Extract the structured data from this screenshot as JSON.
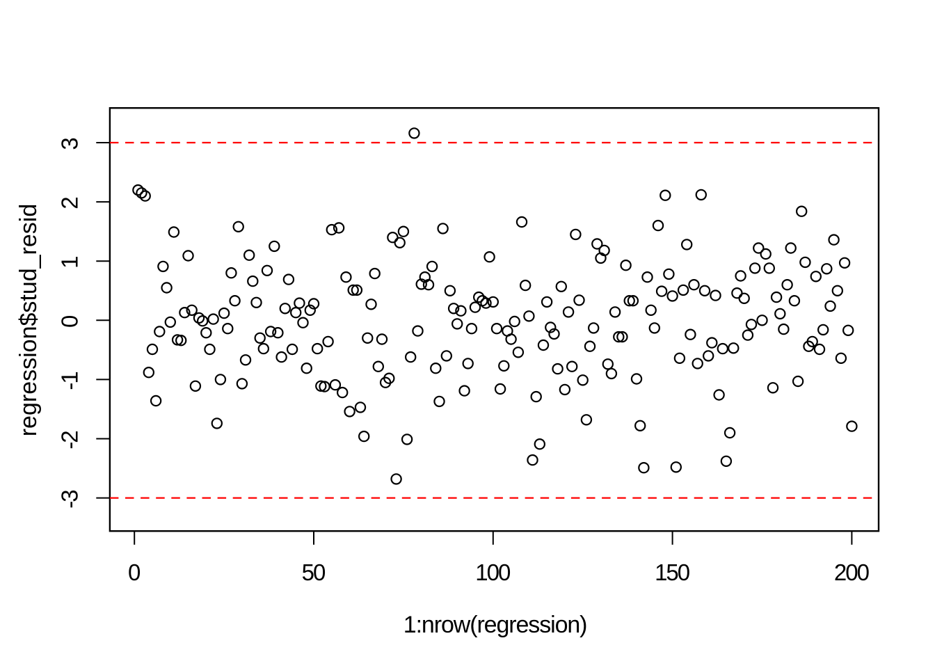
{
  "figure": {
    "background_color": "#ffffff",
    "foreground_color": "#000000",
    "reference_line_color": "#ff0000"
  },
  "chart_data": {
    "type": "scatter",
    "title": "",
    "xlabel": "1:nrow(regression)",
    "ylabel": "regression$stud_resid",
    "x_ticks": [
      0,
      50,
      100,
      150,
      200
    ],
    "x_tick_labels": [
      "0",
      "50",
      "100",
      "150",
      "200"
    ],
    "y_ticks": [
      -3,
      -2,
      -1,
      0,
      1,
      2,
      3
    ],
    "y_tick_labels": [
      "-3",
      "-2",
      "-1",
      "0",
      "1",
      "2",
      "3"
    ],
    "xlim": [
      -7.0,
      208.0
    ],
    "ylim": [
      -3.57,
      3.59
    ],
    "grid": false,
    "legend": false,
    "marker": {
      "shape": "open-circle",
      "color": "#000000"
    },
    "reference_lines": [
      {
        "y": 3,
        "color": "#ff0000",
        "style": "dashed"
      },
      {
        "y": -3,
        "color": "#ff0000",
        "style": "dashed"
      }
    ],
    "x": [
      1,
      2,
      3,
      4,
      5,
      6,
      7,
      8,
      9,
      10,
      11,
      12,
      13,
      14,
      15,
      16,
      17,
      18,
      19,
      20,
      21,
      22,
      23,
      24,
      25,
      26,
      27,
      28,
      29,
      30,
      31,
      32,
      33,
      34,
      35,
      36,
      37,
      38,
      39,
      40,
      41,
      42,
      43,
      44,
      45,
      46,
      47,
      48,
      49,
      50,
      51,
      52,
      53,
      54,
      55,
      56,
      57,
      58,
      59,
      60,
      61,
      62,
      63,
      64,
      65,
      66,
      67,
      68,
      69,
      70,
      71,
      72,
      73,
      74,
      75,
      76,
      77,
      78,
      79,
      80,
      81,
      82,
      83,
      84,
      85,
      86,
      87,
      88,
      89,
      90,
      91,
      92,
      93,
      94,
      95,
      96,
      97,
      98,
      99,
      100,
      101,
      102,
      103,
      104,
      105,
      106,
      107,
      108,
      109,
      110,
      111,
      112,
      113,
      114,
      115,
      116,
      117,
      118,
      119,
      120,
      121,
      122,
      123,
      124,
      125,
      126,
      127,
      128,
      129,
      130,
      131,
      132,
      133,
      134,
      135,
      136,
      137,
      138,
      139,
      140,
      141,
      142,
      143,
      144,
      145,
      146,
      147,
      148,
      149,
      150,
      151,
      152,
      153,
      154,
      155,
      156,
      157,
      158,
      159,
      160,
      161,
      162,
      163,
      164,
      165,
      166,
      167,
      168,
      169,
      170,
      171,
      172,
      173,
      174,
      175,
      176,
      177,
      178,
      179,
      180,
      181,
      182,
      183,
      184,
      185,
      186,
      187,
      188,
      189,
      190,
      191,
      192,
      193,
      194,
      195,
      196,
      197,
      198,
      199,
      200
    ],
    "y": [
      2.2,
      2.15,
      2.1,
      -0.88,
      -0.49,
      -1.36,
      -0.19,
      0.91,
      0.55,
      -0.03,
      1.49,
      -0.33,
      -0.34,
      0.13,
      1.09,
      0.17,
      -1.11,
      0.04,
      -0.01,
      -0.21,
      -0.49,
      0.02,
      -1.74,
      -1.0,
      0.12,
      -0.14,
      0.8,
      0.33,
      1.58,
      -1.07,
      -0.67,
      1.1,
      0.66,
      0.3,
      -0.3,
      -0.48,
      0.84,
      -0.19,
      1.25,
      -0.21,
      -0.62,
      0.2,
      0.69,
      -0.49,
      0.13,
      0.29,
      -0.04,
      -0.81,
      0.17,
      0.28,
      -0.48,
      -1.11,
      -1.12,
      -0.36,
      1.53,
      -1.09,
      1.56,
      -1.22,
      0.73,
      -1.54,
      0.51,
      0.51,
      -1.47,
      -1.96,
      -0.3,
      0.27,
      0.79,
      -0.78,
      -0.32,
      -1.05,
      -0.98,
      1.4,
      -2.68,
      1.31,
      1.5,
      -2.01,
      -0.62,
      3.16,
      -0.18,
      0.61,
      0.73,
      0.6,
      0.91,
      -0.81,
      -1.37,
      1.55,
      -0.6,
      0.5,
      0.2,
      -0.06,
      0.16,
      -1.19,
      -0.73,
      -0.14,
      0.22,
      0.39,
      0.33,
      0.29,
      1.07,
      0.31,
      -0.14,
      -1.16,
      -0.77,
      -0.18,
      -0.32,
      -0.02,
      -0.54,
      1.66,
      0.59,
      0.07,
      -2.36,
      -1.29,
      -2.09,
      -0.42,
      0.31,
      -0.12,
      -0.23,
      -0.82,
      0.57,
      -1.17,
      0.14,
      -0.78,
      1.45,
      0.34,
      -1.01,
      -1.68,
      -0.44,
      -0.13,
      1.29,
      1.05,
      1.18,
      -0.74,
      -0.9,
      0.14,
      -0.28,
      -0.28,
      0.93,
      0.33,
      0.33,
      -0.99,
      -1.78,
      -2.49,
      0.73,
      0.17,
      -0.13,
      1.6,
      0.49,
      2.11,
      0.78,
      0.41,
      -2.48,
      -0.64,
      0.51,
      1.28,
      -0.24,
      0.6,
      -0.73,
      2.12,
      0.5,
      -0.6,
      -0.38,
      0.42,
      -1.26,
      -0.48,
      -2.38,
      -1.9,
      -0.47,
      0.46,
      0.75,
      0.37,
      -0.25,
      -0.07,
      0.88,
      1.22,
      0.0,
      1.12,
      0.88,
      -1.14,
      0.39,
      0.11,
      -0.15,
      0.6,
      1.22,
      0.33,
      -1.03,
      1.84,
      0.98,
      -0.44,
      -0.36,
      0.74,
      -0.49,
      -0.16,
      0.87,
      0.24,
      1.36,
      0.5,
      -0.64,
      0.97,
      -0.17,
      -1.79
    ]
  }
}
